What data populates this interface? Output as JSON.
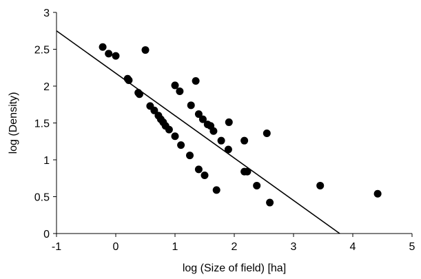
{
  "chart_data": {
    "type": "scatter",
    "title": "",
    "xlabel": "log (Size of field) [ha]",
    "ylabel": "log (Density)",
    "xlim": [
      -1,
      5
    ],
    "ylim": [
      0,
      3
    ],
    "xticks": [
      -1,
      0,
      1,
      2,
      3,
      4,
      5
    ],
    "yticks": [
      0,
      0.5,
      1,
      1.5,
      2,
      2.5,
      3
    ],
    "grid": false,
    "legend": "none",
    "marker_color": "#000000",
    "series": [
      {
        "points": [
          [
            -0.22,
            2.53
          ],
          [
            -0.12,
            2.44
          ],
          [
            0.0,
            2.41
          ],
          [
            0.5,
            2.49
          ],
          [
            0.2,
            2.1
          ],
          [
            0.22,
            2.08
          ],
          [
            0.38,
            1.91
          ],
          [
            0.4,
            1.89
          ],
          [
            0.58,
            1.73
          ],
          [
            0.65,
            1.67
          ],
          [
            0.72,
            1.6
          ],
          [
            0.76,
            1.55
          ],
          [
            0.8,
            1.51
          ],
          [
            0.84,
            1.46
          ],
          [
            0.9,
            1.41
          ],
          [
            1.0,
            1.32
          ],
          [
            1.1,
            1.2
          ],
          [
            1.25,
            1.06
          ],
          [
            1.4,
            0.87
          ],
          [
            1.5,
            0.79
          ],
          [
            1.7,
            0.59
          ],
          [
            1.0,
            2.01
          ],
          [
            1.08,
            1.93
          ],
          [
            1.35,
            2.07
          ],
          [
            1.27,
            1.74
          ],
          [
            1.4,
            1.62
          ],
          [
            1.47,
            1.55
          ],
          [
            1.55,
            1.48
          ],
          [
            1.6,
            1.46
          ],
          [
            1.65,
            1.39
          ],
          [
            1.78,
            1.26
          ],
          [
            1.9,
            1.14
          ],
          [
            1.91,
            1.51
          ],
          [
            2.17,
            1.26
          ],
          [
            2.17,
            0.84
          ],
          [
            2.22,
            0.84
          ],
          [
            2.38,
            0.65
          ],
          [
            2.55,
            1.36
          ],
          [
            2.6,
            0.42
          ],
          [
            3.45,
            0.65
          ],
          [
            4.42,
            0.54
          ]
        ]
      }
    ],
    "trendline": {
      "x": [
        -1,
        3.78
      ],
      "y": [
        2.75,
        0
      ]
    }
  }
}
